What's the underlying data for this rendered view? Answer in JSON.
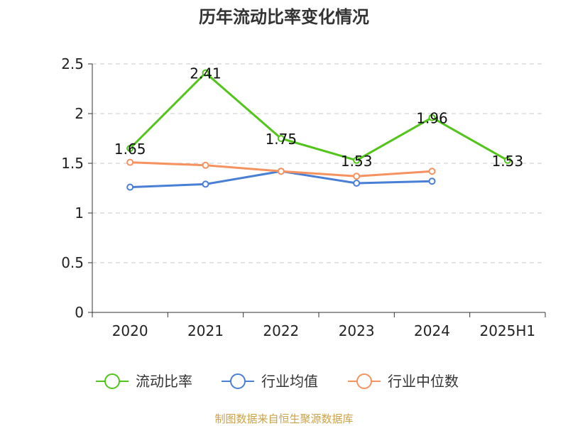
{
  "chart_data": {
    "type": "line",
    "title": "历年流动比率变化情况",
    "categories": [
      "2020",
      "2021",
      "2022",
      "2023",
      "2024",
      "2025H1"
    ],
    "ylim": [
      0,
      2.5
    ],
    "yticks": [
      "0",
      "0.5",
      "1",
      "1.5",
      "2",
      "2.5"
    ],
    "grid": true,
    "legend_position": "bottom",
    "series": [
      {
        "name": "流动比率",
        "color": "#52c41a",
        "values": [
          1.65,
          2.41,
          1.75,
          1.53,
          1.96,
          1.53
        ],
        "labels": [
          "1.65",
          "2.41",
          "1.75",
          "1.53",
          "1.96",
          "1.53"
        ]
      },
      {
        "name": "行业均值",
        "color": "#4a7fd6",
        "values": [
          1.26,
          1.29,
          1.42,
          1.3,
          1.32,
          null
        ]
      },
      {
        "name": "行业中位数",
        "color": "#f5925f",
        "values": [
          1.51,
          1.48,
          1.42,
          1.37,
          1.42,
          null
        ]
      }
    ]
  },
  "footer": {
    "source": "制图数据来自恒生聚源数据库"
  }
}
